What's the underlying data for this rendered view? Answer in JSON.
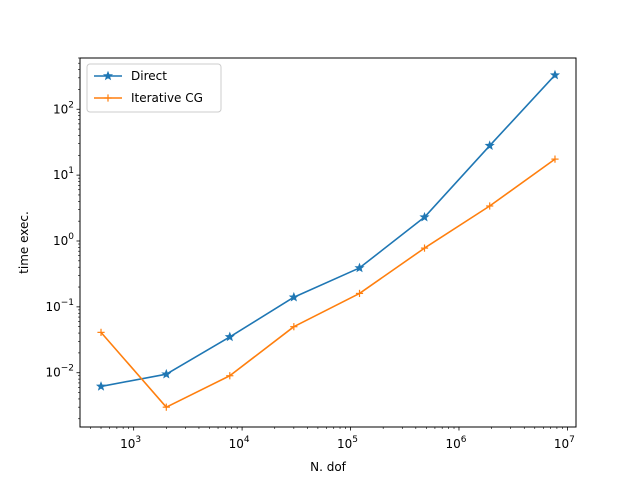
{
  "chart_data": {
    "type": "line",
    "title": "",
    "xlabel": "N. dof",
    "ylabel": "time exec.",
    "xscale": "log",
    "yscale": "log",
    "xlim": [
      320,
      12000000
    ],
    "ylim": [
      0.0015,
      600
    ],
    "grid": false,
    "legend_position": "top-left",
    "x": [
      500,
      2000,
      7700,
      30000,
      121000,
      481000,
      1920000,
      7680000
    ],
    "series": [
      {
        "name": "Direct",
        "color": "#1f77b4",
        "marker": "star",
        "values": [
          0.0062,
          0.0095,
          0.035,
          0.14,
          0.39,
          2.3,
          28,
          330
        ]
      },
      {
        "name": "Iterative CG",
        "color": "#ff7f0e",
        "marker": "plus",
        "values": [
          0.041,
          0.003,
          0.009,
          0.05,
          0.16,
          0.78,
          3.4,
          17.5
        ]
      }
    ],
    "x_ticks": [
      {
        "value": 1000,
        "base": "10",
        "exp": "3"
      },
      {
        "value": 10000,
        "base": "10",
        "exp": "4"
      },
      {
        "value": 100000,
        "base": "10",
        "exp": "5"
      },
      {
        "value": 1000000,
        "base": "10",
        "exp": "6"
      },
      {
        "value": 10000000,
        "base": "10",
        "exp": "7"
      }
    ],
    "y_ticks": [
      {
        "value": 0.01,
        "base": "10",
        "exp": "−2"
      },
      {
        "value": 0.1,
        "base": "10",
        "exp": "−1"
      },
      {
        "value": 1,
        "base": "10",
        "exp": "0"
      },
      {
        "value": 10,
        "base": "10",
        "exp": "1"
      },
      {
        "value": 100,
        "base": "10",
        "exp": "2"
      }
    ]
  }
}
